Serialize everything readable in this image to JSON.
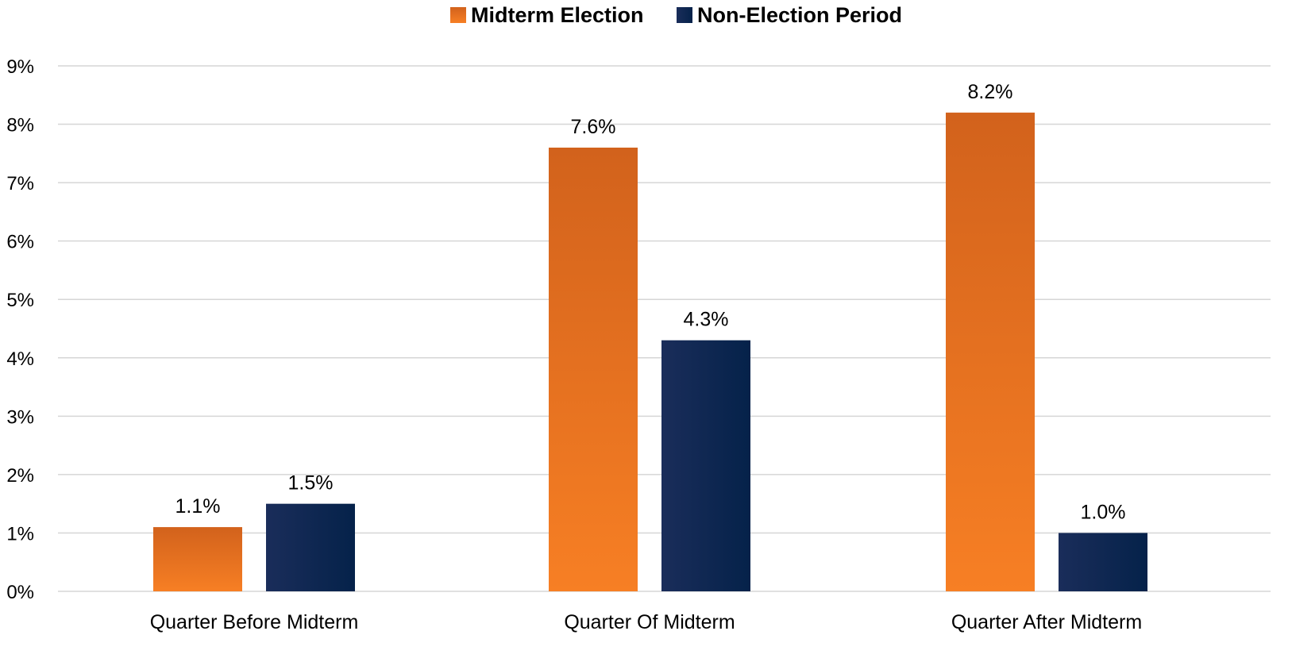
{
  "chart_data": {
    "type": "bar",
    "categories": [
      "Quarter Before Midterm",
      "Quarter Of Midterm",
      "Quarter After Midterm"
    ],
    "series": [
      {
        "name": "Midterm Election",
        "values": [
          1.1,
          7.6,
          8.2
        ],
        "labels": [
          "1.1%",
          "7.6%",
          "8.2%"
        ]
      },
      {
        "name": "Non-Election Period",
        "values": [
          1.5,
          4.3,
          1.0
        ],
        "labels": [
          "1.5%",
          "4.3%",
          "1.0%"
        ]
      }
    ],
    "ylim": [
      0,
      9
    ],
    "yticks": [
      "0%",
      "1%",
      "2%",
      "3%",
      "4%",
      "5%",
      "6%",
      "7%",
      "8%",
      "9%"
    ],
    "grid": true,
    "legend": "top-center",
    "colors": {
      "midterm_top": "#d2621c",
      "midterm_bottom": "#f77f24",
      "nonelection_left": "#1a2d5a",
      "nonelection_right": "#05224a"
    }
  }
}
